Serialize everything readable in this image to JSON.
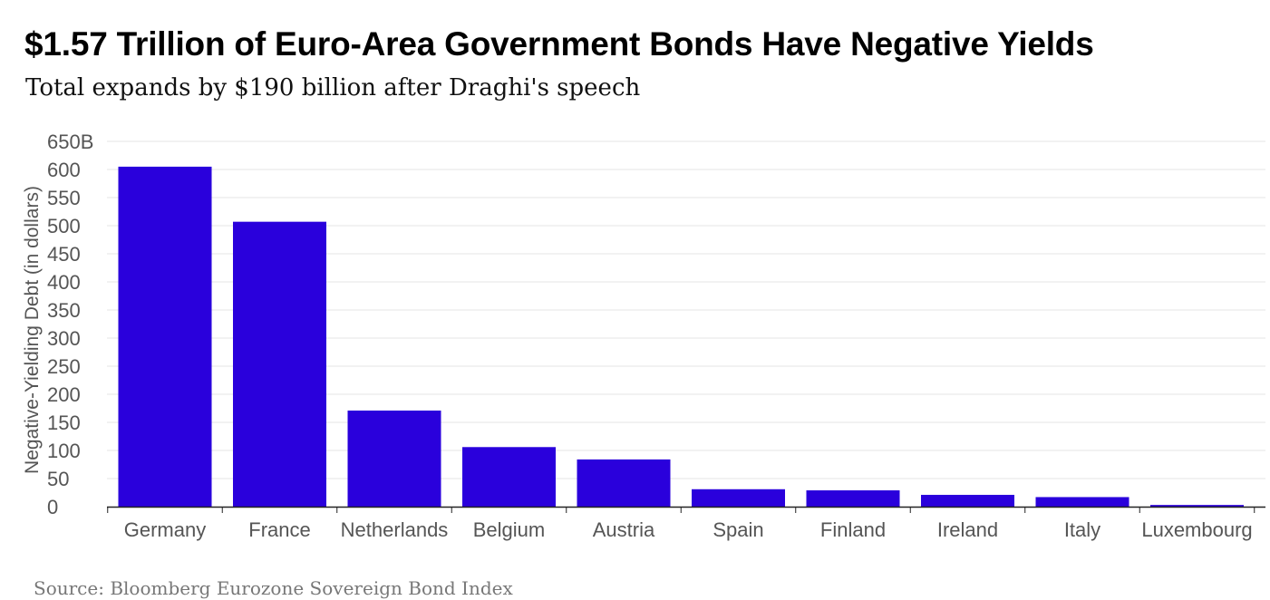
{
  "header": {
    "title": "$1.57 Trillion of Euro-Area Government Bonds Have Negative Yields",
    "subtitle": "Total expands by $190 billion after Draghi's speech"
  },
  "footer": {
    "source": "Source: Bloomberg Eurozone Sovereign Bond Index"
  },
  "colors": {
    "bar": "#2a00dc",
    "grid": "#e6e6e6",
    "axis": "#222222"
  },
  "chart_data": {
    "type": "bar",
    "title": "$1.57 Trillion of Euro-Area Government Bonds Have Negative Yields",
    "subtitle": "Total expands by $190 billion after Draghi's speech",
    "xlabel": "",
    "ylabel": "Negative-Yielding Debt (in dollars)",
    "ylim": [
      0,
      650
    ],
    "y_ticks": [
      0,
      50,
      100,
      150,
      200,
      250,
      300,
      350,
      400,
      450,
      500,
      550,
      600,
      650
    ],
    "y_tick_labels": [
      "0",
      "50",
      "100",
      "150",
      "200",
      "250",
      "300",
      "350",
      "400",
      "450",
      "500",
      "550",
      "600",
      "650B"
    ],
    "categories": [
      "Germany",
      "France",
      "Netherlands",
      "Belgium",
      "Austria",
      "Spain",
      "Finland",
      "Ireland",
      "Italy",
      "Luxembourg"
    ],
    "values": [
      605,
      507,
      171,
      106,
      84,
      31,
      29,
      21,
      17,
      3
    ],
    "grid": true,
    "legend": "none"
  }
}
